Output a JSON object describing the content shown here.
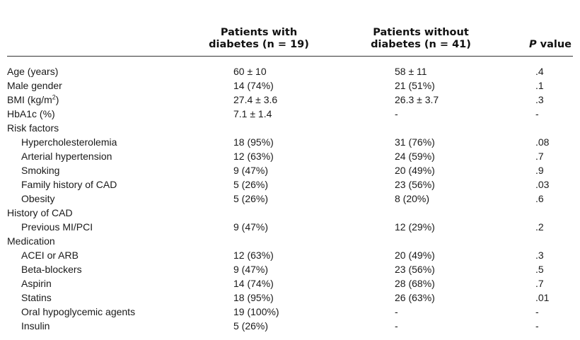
{
  "header": {
    "col_diabetes_line1": "Patients with",
    "col_diabetes_line2": "diabetes (n = 19)",
    "col_nodiabetes_line1": "Patients without",
    "col_nodiabetes_line2": "diabetes (n = 41)",
    "col_p_italic": "P",
    "col_p_rest": " value"
  },
  "rows": [
    {
      "label": "Age (years)",
      "indent": false,
      "diabetes": "60 ± 10",
      "no_diabetes": "58 ± 11",
      "p": ".4"
    },
    {
      "label": "Male gender",
      "indent": false,
      "diabetes": "14 (74%)",
      "no_diabetes": "21 (51%)",
      "p": ".1"
    },
    {
      "label": "BMI (kg/m",
      "label_sup": "2",
      "label_after": ")",
      "indent": false,
      "diabetes": "27.4 ± 3.6",
      "no_diabetes": "26.3 ± 3.7",
      "p": ".3"
    },
    {
      "label": "HbA1c (%)",
      "indent": false,
      "diabetes": "7.1 ± 1.4",
      "no_diabetes": "-",
      "p": "-"
    },
    {
      "label": "Risk factors",
      "indent": false,
      "diabetes": "",
      "no_diabetes": "",
      "p": ""
    },
    {
      "label": "Hypercholesterolemia",
      "indent": true,
      "diabetes": "18 (95%)",
      "no_diabetes": "31 (76%)",
      "p": ".08"
    },
    {
      "label": "Arterial hypertension",
      "indent": true,
      "diabetes": "12 (63%)",
      "no_diabetes": "24 (59%)",
      "p": ".7"
    },
    {
      "label": "Smoking",
      "indent": true,
      "diabetes": "9 (47%)",
      "no_diabetes": "20 (49%)",
      "p": ".9"
    },
    {
      "label": "Family history of CAD",
      "indent": true,
      "diabetes": "5 (26%)",
      "no_diabetes": "23 (56%)",
      "p": ".03"
    },
    {
      "label": "Obesity",
      "indent": true,
      "diabetes": "5 (26%)",
      "no_diabetes": "8 (20%)",
      "p": ".6"
    },
    {
      "label": "History of CAD",
      "indent": false,
      "diabetes": "",
      "no_diabetes": "",
      "p": ""
    },
    {
      "label": "Previous MI/PCI",
      "indent": true,
      "diabetes": "9 (47%)",
      "no_diabetes": "12 (29%)",
      "p": ".2"
    },
    {
      "label": "Medication",
      "indent": false,
      "diabetes": "",
      "no_diabetes": "",
      "p": ""
    },
    {
      "label": "ACEI or ARB",
      "indent": true,
      "diabetes": "12 (63%)",
      "no_diabetes": "20 (49%)",
      "p": ".3"
    },
    {
      "label": "Beta-blockers",
      "indent": true,
      "diabetes": "9 (47%)",
      "no_diabetes": "23 (56%)",
      "p": ".5"
    },
    {
      "label": "Aspirin",
      "indent": true,
      "diabetes": "14 (74%)",
      "no_diabetes": "28 (68%)",
      "p": ".7"
    },
    {
      "label": "Statins",
      "indent": true,
      "diabetes": "18 (95%)",
      "no_diabetes": "26 (63%)",
      "p": ".01"
    },
    {
      "label": "Oral hypoglycemic agents",
      "indent": true,
      "diabetes": "19 (100%)",
      "no_diabetes": "-",
      "p": "-"
    },
    {
      "label": "Insulin",
      "indent": true,
      "diabetes": "5 (26%)",
      "no_diabetes": "-",
      "p": "-"
    }
  ]
}
